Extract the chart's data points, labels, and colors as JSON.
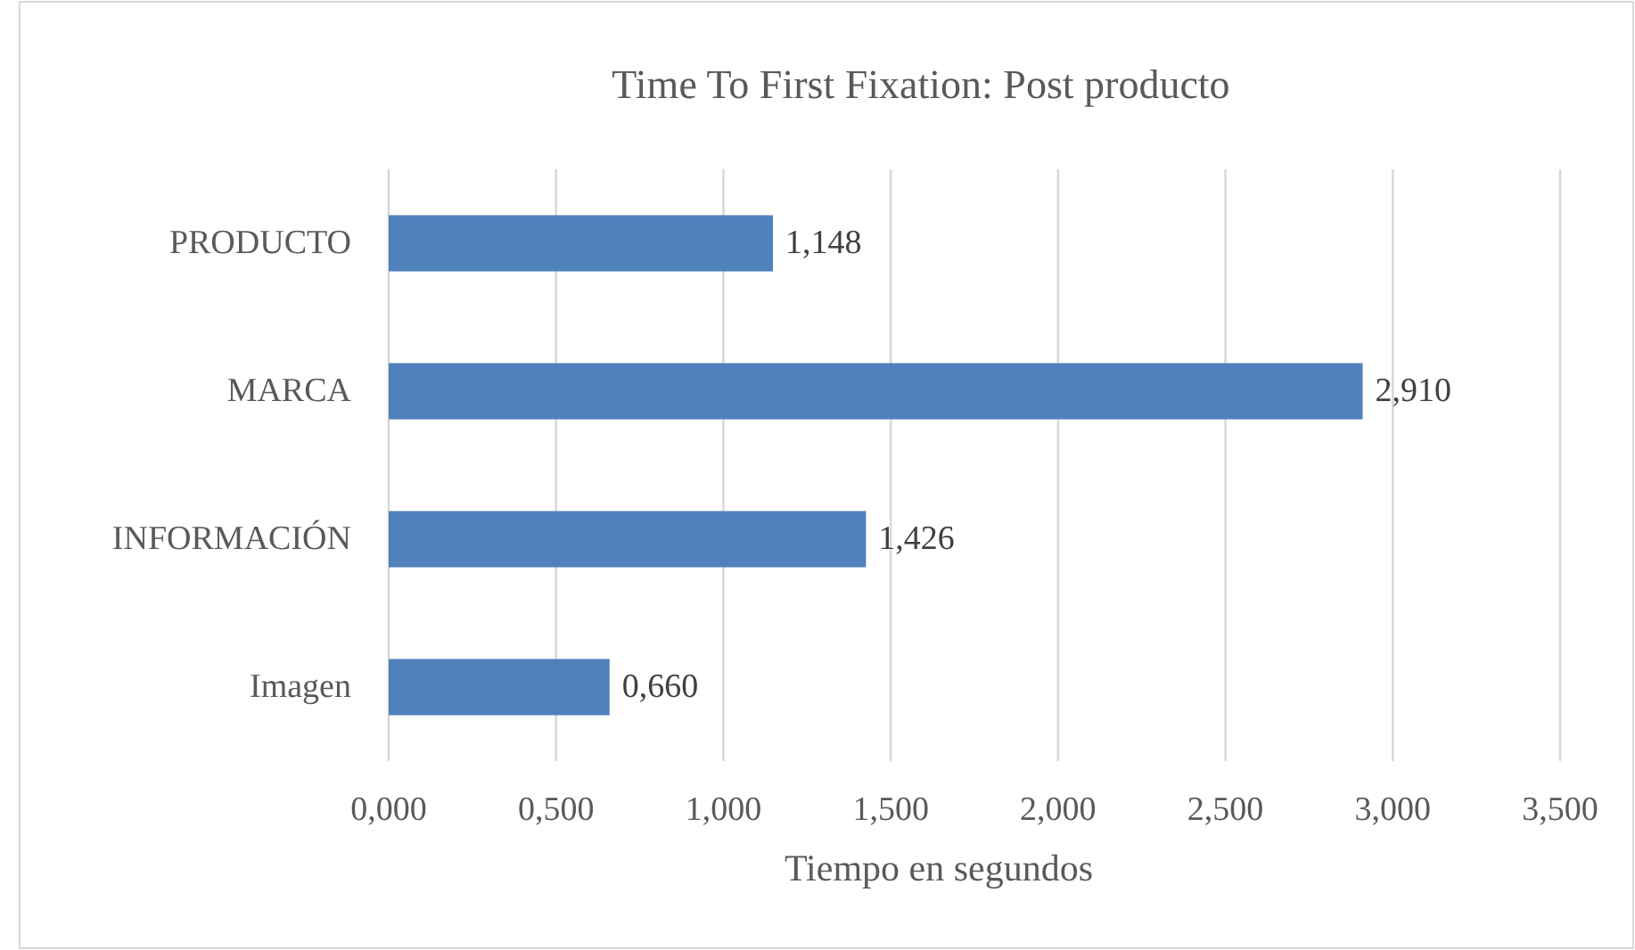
{
  "chart_data": {
    "type": "bar",
    "orientation": "horizontal",
    "title": "Time To First Fixation: Post producto",
    "xlabel": "Tiempo en segundos",
    "categories": [
      "PRODUCTO",
      "MARCA",
      "INFORMACIÓN",
      "Imagen"
    ],
    "values": [
      1.148,
      2.91,
      1.426,
      0.66
    ],
    "value_labels": [
      "1,148",
      "2,910",
      "1,426",
      "0,660"
    ],
    "color": "#4f81bd",
    "xlim": [
      0,
      3.5
    ],
    "xticks": [
      {
        "value": 0,
        "label": "0,000"
      },
      {
        "value": 0.5,
        "label": "0,500"
      },
      {
        "value": 1,
        "label": "1,000"
      },
      {
        "value": 1.5,
        "label": "1,500"
      },
      {
        "value": 2,
        "label": "2,000"
      },
      {
        "value": 2.5,
        "label": "2,500"
      },
      {
        "value": 3,
        "label": "3,000"
      },
      {
        "value": 3.5,
        "label": "3,500"
      }
    ],
    "grid": "x"
  }
}
